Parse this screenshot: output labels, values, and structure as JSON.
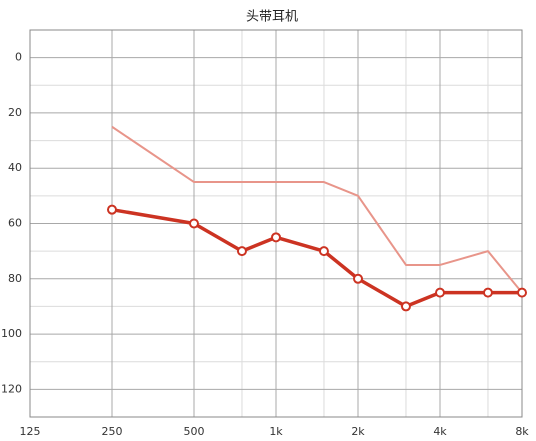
{
  "chart_data": {
    "type": "line",
    "title": "头带耳机",
    "x": [
      250,
      500,
      750,
      1000,
      1500,
      2000,
      3000,
      4000,
      6000,
      8000
    ],
    "xscale": "log",
    "xlim": [
      125,
      8000
    ],
    "xticks": [
      125,
      250,
      500,
      {
        "value": 1000,
        "label": "1k"
      },
      {
        "value": 2000,
        "label": "2k"
      },
      {
        "value": 4000,
        "label": "4k"
      },
      {
        "value": 8000,
        "label": "8k"
      }
    ],
    "xticks_minor": [
      750,
      1500,
      3000,
      6000
    ],
    "ylim": [
      -10,
      130
    ],
    "yinverted": true,
    "yticks": [
      0,
      20,
      40,
      60,
      80,
      100,
      120
    ],
    "yticks_minor": [
      10,
      30,
      50,
      70,
      90,
      110,
      130
    ],
    "grid": true,
    "series": [
      {
        "color": "#e8958a",
        "markers": false,
        "values": [
          25,
          45,
          45,
          45,
          45,
          50,
          75,
          75,
          70,
          85
        ]
      },
      {
        "color": "#cc3322",
        "markers": true,
        "values": [
          55,
          60,
          70,
          65,
          70,
          80,
          90,
          85,
          85,
          85
        ]
      }
    ]
  }
}
